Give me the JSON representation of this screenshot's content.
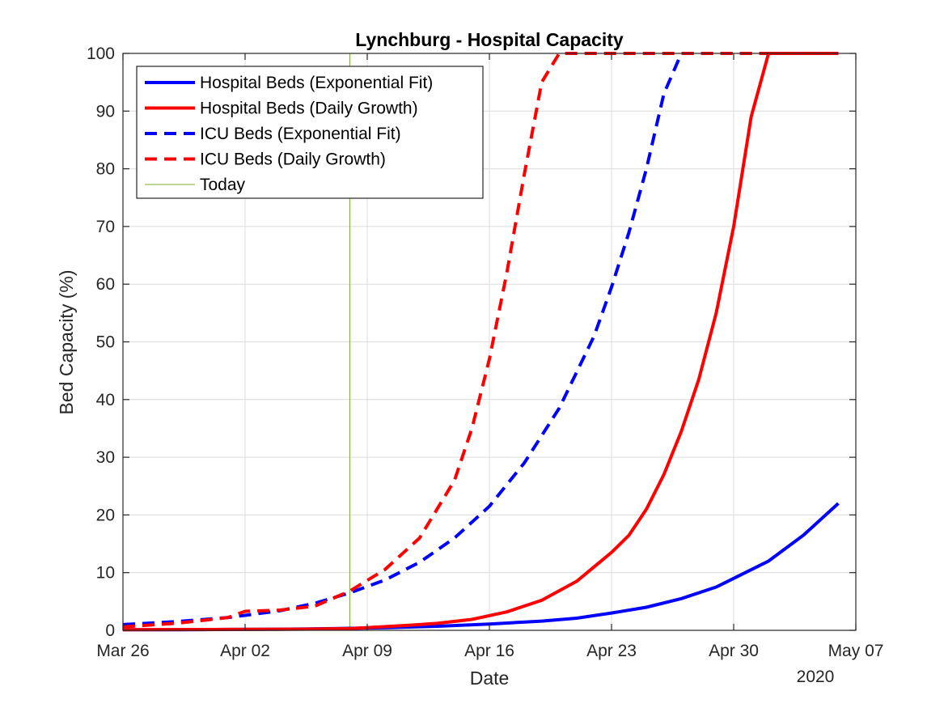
{
  "chart_data": {
    "type": "line",
    "title": "Lynchburg - Hospital Capacity",
    "xlabel": "Date",
    "ylabel": "Bed Capacity (%)",
    "year_label": "2020",
    "xlim": [
      "2020-03-26",
      "2020-05-07"
    ],
    "ylim": [
      0,
      100
    ],
    "grid": true,
    "legend_position": "top-left",
    "x_ticks": [
      {
        "date": "2020-03-26",
        "label": "Mar 26"
      },
      {
        "date": "2020-04-02",
        "label": "Apr 02"
      },
      {
        "date": "2020-04-09",
        "label": "Apr 09"
      },
      {
        "date": "2020-04-16",
        "label": "Apr 16"
      },
      {
        "date": "2020-04-23",
        "label": "Apr 23"
      },
      {
        "date": "2020-04-30",
        "label": "Apr 30"
      },
      {
        "date": "2020-05-07",
        "label": "May 07"
      }
    ],
    "y_ticks": [
      0,
      10,
      20,
      30,
      40,
      50,
      60,
      70,
      80,
      90,
      100
    ],
    "today": {
      "name": "Today",
      "date": "2020-04-08",
      "color": "#77AC30"
    },
    "series": [
      {
        "name": "Hospital Beds (Exponential Fit)",
        "color": "#0000FF",
        "dash": "solid",
        "points": [
          [
            "2020-03-26",
            0.1
          ],
          [
            "2020-03-29",
            0.1
          ],
          [
            "2020-04-01",
            0.15
          ],
          [
            "2020-04-04",
            0.2
          ],
          [
            "2020-04-07",
            0.3
          ],
          [
            "2020-04-10",
            0.45
          ],
          [
            "2020-04-13",
            0.7
          ],
          [
            "2020-04-16",
            1.1
          ],
          [
            "2020-04-19",
            1.6
          ],
          [
            "2020-04-21",
            2.1
          ],
          [
            "2020-04-23",
            3.0
          ],
          [
            "2020-04-25",
            4.0
          ],
          [
            "2020-04-27",
            5.5
          ],
          [
            "2020-04-29",
            7.5
          ],
          [
            "2020-04-30",
            9.0
          ],
          [
            "2020-05-02",
            12.0
          ],
          [
            "2020-05-04",
            16.5
          ],
          [
            "2020-05-06",
            22.0
          ]
        ]
      },
      {
        "name": "Hospital Beds (Daily Growth)",
        "color": "#FF0000",
        "dash": "solid",
        "points": [
          [
            "2020-03-26",
            0.1
          ],
          [
            "2020-04-01",
            0.15
          ],
          [
            "2020-04-05",
            0.2
          ],
          [
            "2020-04-08",
            0.3
          ],
          [
            "2020-04-11",
            0.8
          ],
          [
            "2020-04-13",
            1.2
          ],
          [
            "2020-04-15",
            1.9
          ],
          [
            "2020-04-17",
            3.2
          ],
          [
            "2020-04-19",
            5.2
          ],
          [
            "2020-04-21",
            8.5
          ],
          [
            "2020-04-23",
            13.5
          ],
          [
            "2020-04-24",
            16.5
          ],
          [
            "2020-04-25",
            21.0
          ],
          [
            "2020-04-26",
            27.0
          ],
          [
            "2020-04-27",
            34.5
          ],
          [
            "2020-04-28",
            43.5
          ],
          [
            "2020-04-29",
            55.0
          ],
          [
            "2020-04-30",
            70.0
          ],
          [
            "2020-05-01",
            89.0
          ],
          [
            "2020-05-02",
            100.0
          ],
          [
            "2020-05-06",
            100.0
          ]
        ]
      },
      {
        "name": "ICU Beds (Exponential Fit)",
        "color": "#0000FF",
        "dash": "dashed",
        "points": [
          [
            "2020-03-26",
            1.0
          ],
          [
            "2020-03-29",
            1.5
          ],
          [
            "2020-04-01",
            2.2
          ],
          [
            "2020-04-04",
            3.4
          ],
          [
            "2020-04-06",
            4.7
          ],
          [
            "2020-04-08",
            6.5
          ],
          [
            "2020-04-10",
            8.7
          ],
          [
            "2020-04-12",
            11.8
          ],
          [
            "2020-04-14",
            16.0
          ],
          [
            "2020-04-16",
            21.5
          ],
          [
            "2020-04-18",
            29.0
          ],
          [
            "2020-04-20",
            38.5
          ],
          [
            "2020-04-22",
            51.0
          ],
          [
            "2020-04-23",
            59.5
          ],
          [
            "2020-04-24",
            69.0
          ],
          [
            "2020-04-25",
            80.0
          ],
          [
            "2020-04-26",
            93.0
          ],
          [
            "2020-04-27",
            100.0
          ],
          [
            "2020-05-06",
            100.0
          ]
        ]
      },
      {
        "name": "ICU Beds (Daily Growth)",
        "color": "#FF0000",
        "dash": "dashed",
        "points": [
          [
            "2020-03-26",
            0.6
          ],
          [
            "2020-03-29",
            1.2
          ],
          [
            "2020-04-01",
            2.2
          ],
          [
            "2020-04-02",
            3.3
          ],
          [
            "2020-04-04",
            3.5
          ],
          [
            "2020-04-06",
            4.2
          ],
          [
            "2020-04-08",
            6.8
          ],
          [
            "2020-04-10",
            10.5
          ],
          [
            "2020-04-12",
            16.0
          ],
          [
            "2020-04-14",
            26.0
          ],
          [
            "2020-04-15",
            35.0
          ],
          [
            "2020-04-16",
            47.0
          ],
          [
            "2020-04-17",
            62.0
          ],
          [
            "2020-04-18",
            79.0
          ],
          [
            "2020-04-19",
            95.0
          ],
          [
            "2020-04-20",
            100.0
          ],
          [
            "2020-05-06",
            100.0
          ]
        ]
      }
    ]
  }
}
